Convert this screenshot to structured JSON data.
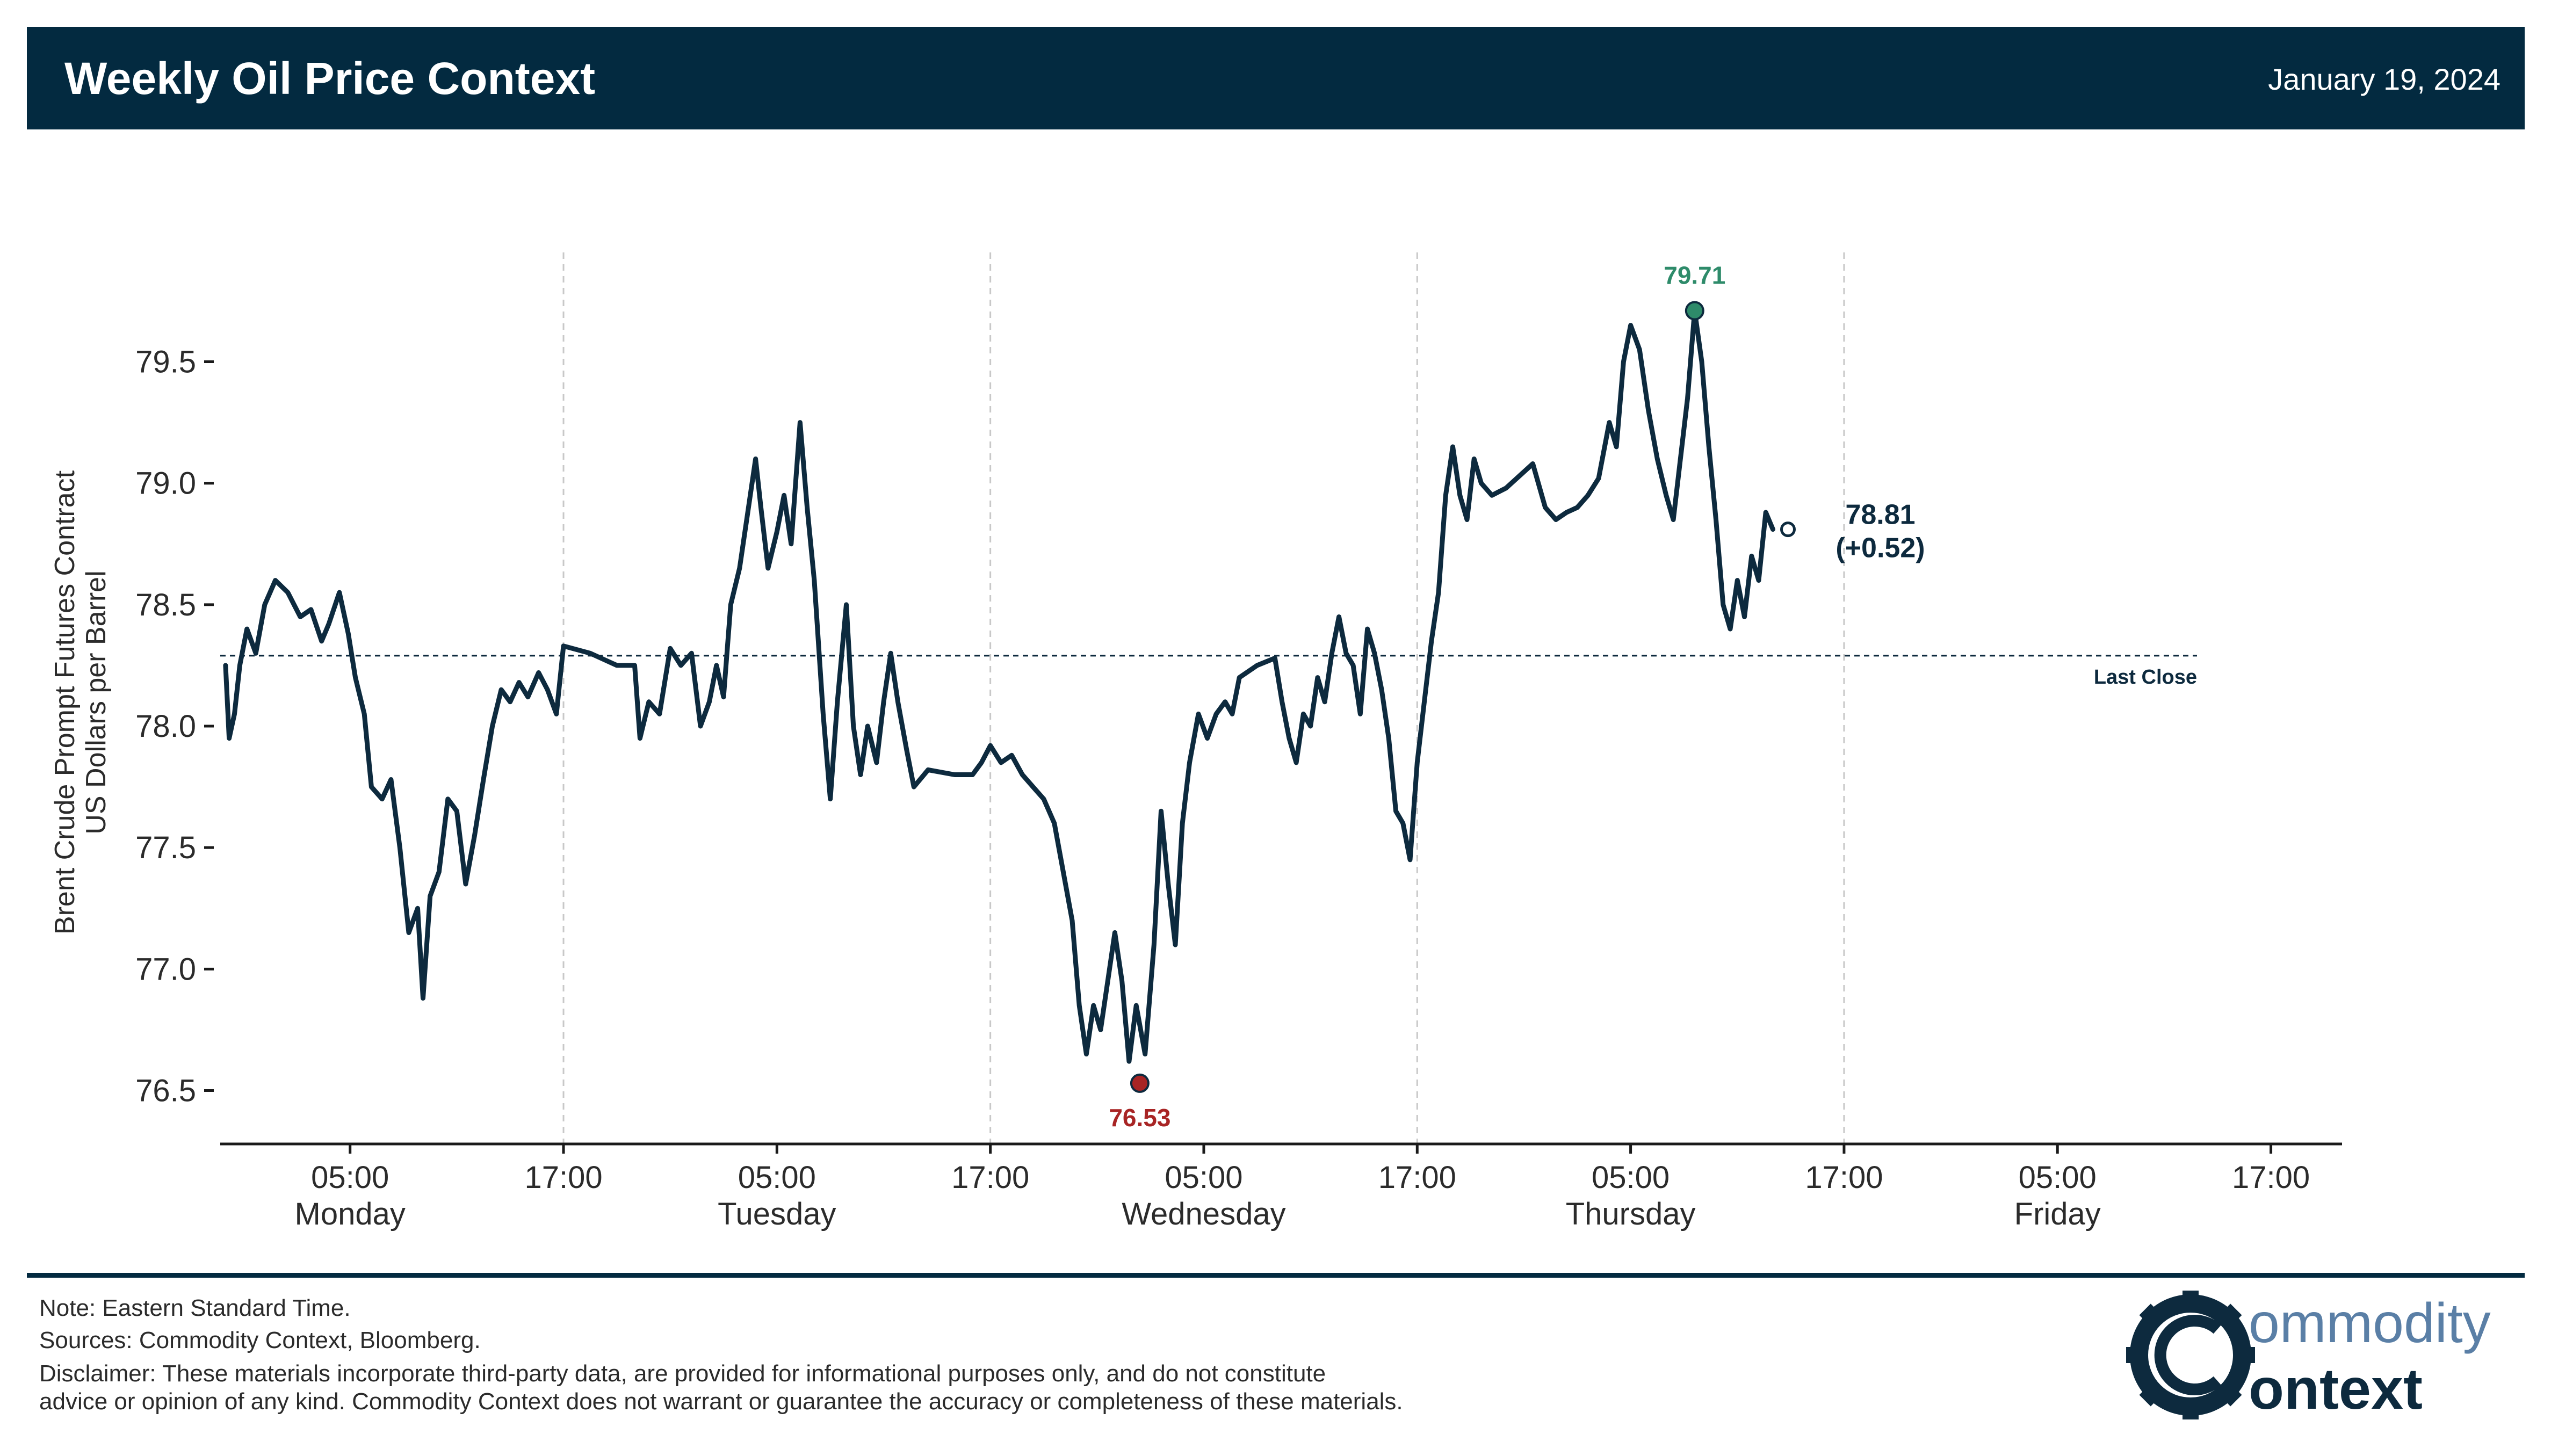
{
  "header": {
    "title": "Weekly Oil Price Context",
    "date": "January 19, 2024",
    "background_color": "#032a40"
  },
  "chart_data": {
    "type": "line",
    "title": "Weekly Oil Price Context",
    "ylabel_line1": "Brent Crude Prompt Futures Contract",
    "ylabel_line2": "US Dollars per Barrel",
    "xlabel": "",
    "ylim": [
      76.28,
      79.95
    ],
    "yticks": [
      76.5,
      77.0,
      77.5,
      78.0,
      78.5,
      79.0,
      79.5
    ],
    "ytick_labels": [
      "76.5",
      "77.0",
      "77.5",
      "78.0",
      "78.5",
      "79.0",
      "79.5"
    ],
    "x_unit": "hours since Monday 00:00 EST",
    "xlim": [
      -2.3,
      117
    ],
    "xticks": [
      {
        "x": 5,
        "time": "05:00",
        "day": "Monday"
      },
      {
        "x": 17,
        "time": "17:00",
        "day": ""
      },
      {
        "x": 29,
        "time": "05:00",
        "day": "Tuesday"
      },
      {
        "x": 41,
        "time": "17:00",
        "day": ""
      },
      {
        "x": 53,
        "time": "05:00",
        "day": "Wednesday"
      },
      {
        "x": 65,
        "time": "17:00",
        "day": ""
      },
      {
        "x": 77,
        "time": "05:00",
        "day": "Thursday"
      },
      {
        "x": 89,
        "time": "17:00",
        "day": ""
      },
      {
        "x": 101,
        "time": "05:00",
        "day": "Friday"
      },
      {
        "x": 113,
        "time": "17:00",
        "day": ""
      }
    ],
    "vertical_gridlines_at": [
      17,
      41,
      65,
      89
    ],
    "series": [
      {
        "name": "Brent Crude Prompt Futures",
        "color": "#0d2a3e",
        "points": [
          [
            -2.0,
            78.25
          ],
          [
            -1.8,
            77.95
          ],
          [
            -1.5,
            78.05
          ],
          [
            -1.2,
            78.25
          ],
          [
            -0.8,
            78.4
          ],
          [
            -0.3,
            78.3
          ],
          [
            0.2,
            78.5
          ],
          [
            0.8,
            78.6
          ],
          [
            1.5,
            78.55
          ],
          [
            2.2,
            78.45
          ],
          [
            2.8,
            78.48
          ],
          [
            3.4,
            78.35
          ],
          [
            3.8,
            78.42
          ],
          [
            4.4,
            78.55
          ],
          [
            4.9,
            78.38
          ],
          [
            5.3,
            78.2
          ],
          [
            5.8,
            78.05
          ],
          [
            6.2,
            77.75
          ],
          [
            6.8,
            77.7
          ],
          [
            7.3,
            77.78
          ],
          [
            7.8,
            77.5
          ],
          [
            8.3,
            77.15
          ],
          [
            8.8,
            77.25
          ],
          [
            9.1,
            76.88
          ],
          [
            9.5,
            77.3
          ],
          [
            10.0,
            77.4
          ],
          [
            10.5,
            77.7
          ],
          [
            11.0,
            77.65
          ],
          [
            11.5,
            77.35
          ],
          [
            12.0,
            77.55
          ],
          [
            12.5,
            77.78
          ],
          [
            13.0,
            78.0
          ],
          [
            13.5,
            78.15
          ],
          [
            14.0,
            78.1
          ],
          [
            14.5,
            78.18
          ],
          [
            15.0,
            78.12
          ],
          [
            15.6,
            78.22
          ],
          [
            16.1,
            78.15
          ],
          [
            16.6,
            78.05
          ],
          [
            17.0,
            78.33
          ],
          [
            18.5,
            78.3
          ],
          [
            20.0,
            78.25
          ],
          [
            21.0,
            78.25
          ],
          [
            21.3,
            77.95
          ],
          [
            21.8,
            78.1
          ],
          [
            22.4,
            78.05
          ],
          [
            23.0,
            78.32
          ],
          [
            23.6,
            78.25
          ],
          [
            24.2,
            78.3
          ],
          [
            24.7,
            78.0
          ],
          [
            25.2,
            78.1
          ],
          [
            25.6,
            78.25
          ],
          [
            26.0,
            78.12
          ],
          [
            26.4,
            78.5
          ],
          [
            26.9,
            78.65
          ],
          [
            27.3,
            78.85
          ],
          [
            27.8,
            79.1
          ],
          [
            28.1,
            78.9
          ],
          [
            28.5,
            78.65
          ],
          [
            29.0,
            78.8
          ],
          [
            29.4,
            78.95
          ],
          [
            29.8,
            78.75
          ],
          [
            30.3,
            79.25
          ],
          [
            30.7,
            78.9
          ],
          [
            31.1,
            78.6
          ],
          [
            31.6,
            78.05
          ],
          [
            32.0,
            77.7
          ],
          [
            32.4,
            78.1
          ],
          [
            32.9,
            78.5
          ],
          [
            33.3,
            78.0
          ],
          [
            33.7,
            77.8
          ],
          [
            34.1,
            78.0
          ],
          [
            34.6,
            77.85
          ],
          [
            35.0,
            78.1
          ],
          [
            35.4,
            78.3
          ],
          [
            35.8,
            78.1
          ],
          [
            36.3,
            77.9
          ],
          [
            36.7,
            77.75
          ],
          [
            37.5,
            77.82
          ],
          [
            39.0,
            77.8
          ],
          [
            40.0,
            77.8
          ],
          [
            40.5,
            77.85
          ],
          [
            41.0,
            77.92
          ],
          [
            41.6,
            77.85
          ],
          [
            42.2,
            77.88
          ],
          [
            42.8,
            77.8
          ],
          [
            43.4,
            77.75
          ],
          [
            44.0,
            77.7
          ],
          [
            44.6,
            77.6
          ],
          [
            45.1,
            77.4
          ],
          [
            45.6,
            77.2
          ],
          [
            46.0,
            76.85
          ],
          [
            46.4,
            76.65
          ],
          [
            46.8,
            76.85
          ],
          [
            47.2,
            76.75
          ],
          [
            47.6,
            76.95
          ],
          [
            48.0,
            77.15
          ],
          [
            48.4,
            76.95
          ],
          [
            48.8,
            76.62
          ],
          [
            49.2,
            76.85
          ],
          [
            49.7,
            76.65
          ],
          [
            50.2,
            77.1
          ],
          [
            50.6,
            77.65
          ],
          [
            51.0,
            77.35
          ],
          [
            51.4,
            77.1
          ],
          [
            51.8,
            77.6
          ],
          [
            52.2,
            77.85
          ],
          [
            52.7,
            78.05
          ],
          [
            53.2,
            77.95
          ],
          [
            53.7,
            78.05
          ],
          [
            54.2,
            78.1
          ],
          [
            54.6,
            78.05
          ],
          [
            55.0,
            78.2
          ],
          [
            56.0,
            78.25
          ],
          [
            57.0,
            78.28
          ],
          [
            57.4,
            78.1
          ],
          [
            57.8,
            77.95
          ],
          [
            58.2,
            77.85
          ],
          [
            58.6,
            78.05
          ],
          [
            59.0,
            78.0
          ],
          [
            59.4,
            78.2
          ],
          [
            59.8,
            78.1
          ],
          [
            60.2,
            78.3
          ],
          [
            60.6,
            78.45
          ],
          [
            61.0,
            78.3
          ],
          [
            61.4,
            78.25
          ],
          [
            61.8,
            78.05
          ],
          [
            62.2,
            78.4
          ],
          [
            62.6,
            78.3
          ],
          [
            63.0,
            78.15
          ],
          [
            63.4,
            77.95
          ],
          [
            63.8,
            77.65
          ],
          [
            64.2,
            77.6
          ],
          [
            64.6,
            77.45
          ],
          [
            65.0,
            77.85
          ],
          [
            65.4,
            78.1
          ],
          [
            65.8,
            78.35
          ],
          [
            66.2,
            78.55
          ],
          [
            66.6,
            78.95
          ],
          [
            67.0,
            79.15
          ],
          [
            67.4,
            78.95
          ],
          [
            67.8,
            78.85
          ],
          [
            68.2,
            79.1
          ],
          [
            68.6,
            79.0
          ],
          [
            69.2,
            78.95
          ],
          [
            70.0,
            78.98
          ],
          [
            71.5,
            79.08
          ],
          [
            72.2,
            78.9
          ],
          [
            72.8,
            78.85
          ],
          [
            73.4,
            78.88
          ],
          [
            74.0,
            78.9
          ],
          [
            74.6,
            78.95
          ],
          [
            75.2,
            79.02
          ],
          [
            75.8,
            79.25
          ],
          [
            76.2,
            79.15
          ],
          [
            76.6,
            79.5
          ],
          [
            77.0,
            79.65
          ],
          [
            77.5,
            79.55
          ],
          [
            78.0,
            79.3
          ],
          [
            78.5,
            79.1
          ],
          [
            79.0,
            78.95
          ],
          [
            79.4,
            78.85
          ],
          [
            79.8,
            79.1
          ],
          [
            80.2,
            79.35
          ],
          [
            80.6,
            79.71
          ],
          [
            81.0,
            79.5
          ],
          [
            81.4,
            79.15
          ],
          [
            81.8,
            78.85
          ],
          [
            82.2,
            78.5
          ],
          [
            82.6,
            78.4
          ],
          [
            83.0,
            78.6
          ],
          [
            83.4,
            78.45
          ],
          [
            83.8,
            78.7
          ],
          [
            84.2,
            78.6
          ],
          [
            84.6,
            78.88
          ],
          [
            85.0,
            78.81
          ]
        ]
      }
    ],
    "x_gaps_compressed": true,
    "reference_line": {
      "value": 78.29,
      "label": "Last Close",
      "style": "dashed"
    },
    "annotations": {
      "high": {
        "value": 79.71,
        "label": "79.71",
        "color": "#2e8b6a"
      },
      "low": {
        "value": 76.53,
        "label": "76.53",
        "color": "#a82424"
      },
      "last": {
        "value": 78.81,
        "label_value": "78.81",
        "label_change": "(+0.52)"
      }
    }
  },
  "footer": {
    "note": "Note: Eastern Standard Time.",
    "sources": "Sources: Commodity Context, Bloomberg.",
    "disclaimer_line1": "Disclaimer: These materials incorporate third-party data, are provided for informational purposes only, and do not constitute",
    "disclaimer_line2": "advice or opinion of any kind. Commodity Context does not warrant or guarantee the accuracy or completeness of these materials.",
    "logo_word1": "ommodity",
    "logo_word2": "ontext",
    "logo_color_dark": "#0d2a3e",
    "logo_color_light": "#5a7fa6"
  }
}
